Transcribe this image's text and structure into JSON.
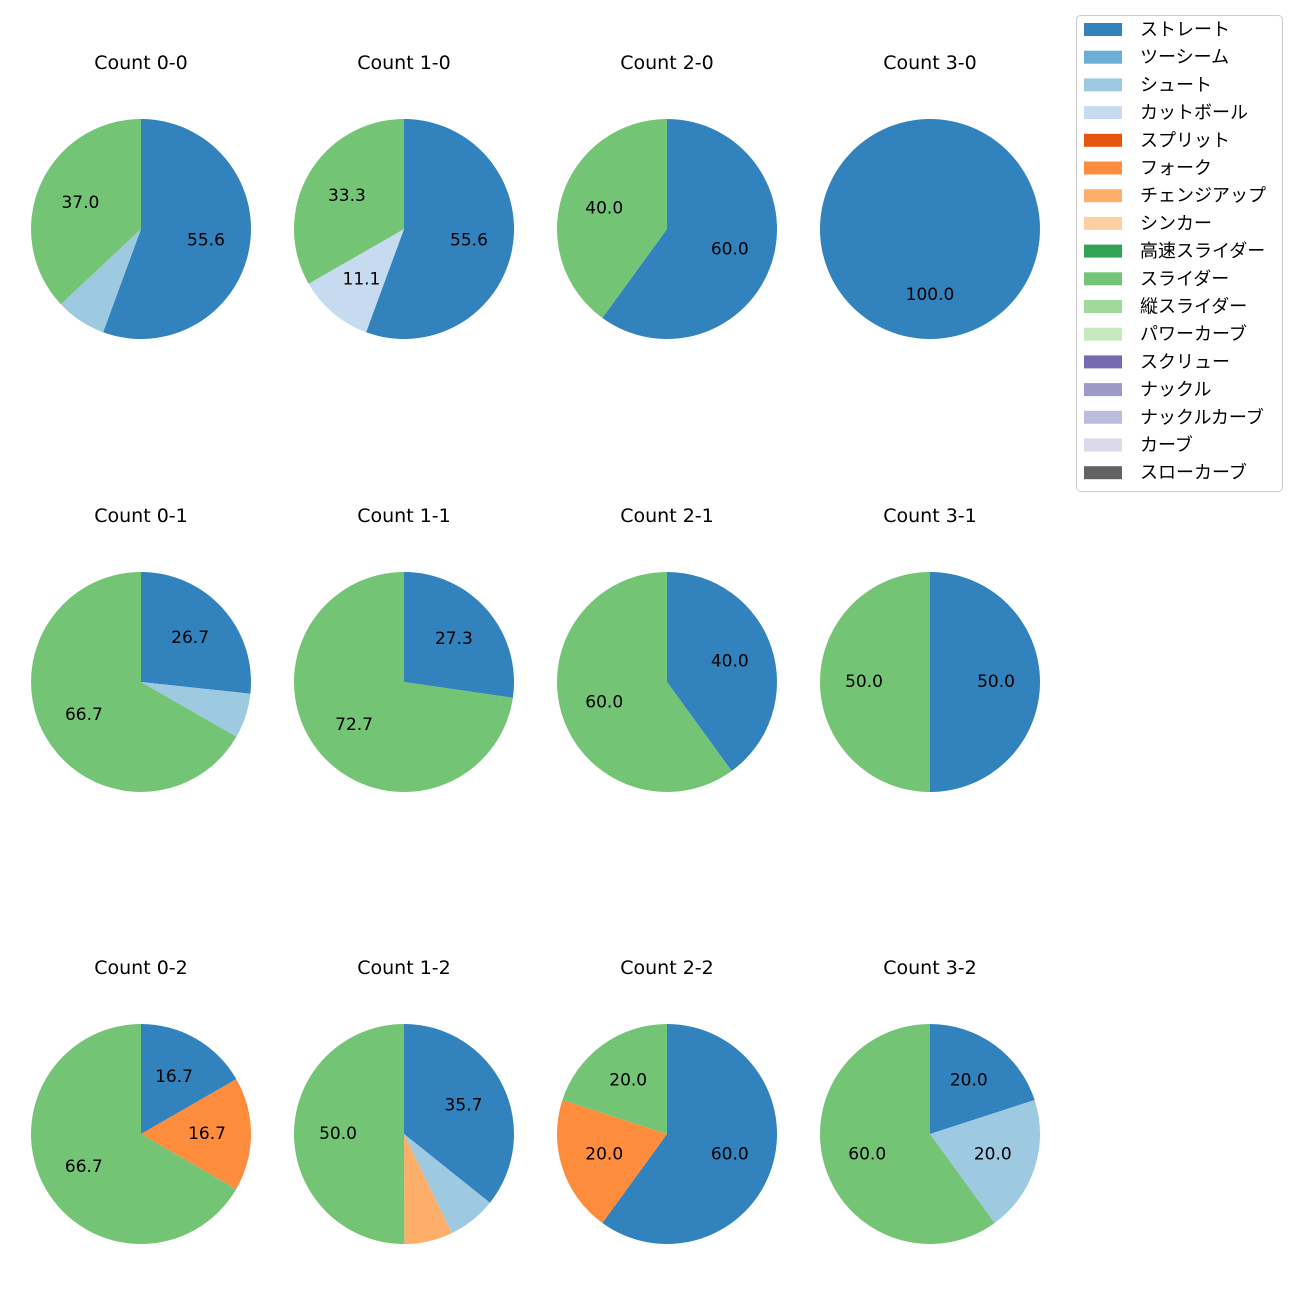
{
  "chart_data": {
    "type": "pie",
    "categories": [
      "ストレート",
      "ツーシーム",
      "シュート",
      "カットボール",
      "スプリット",
      "フォーク",
      "チェンジアップ",
      "シンカー",
      "高速スライダー",
      "スライダー",
      "縦スライダー",
      "パワーカーブ",
      "スクリュー",
      "ナックル",
      "ナックルカーブ",
      "カーブ",
      "スローカーブ"
    ],
    "colors": [
      "#3182bd",
      "#6baed6",
      "#9ecae1",
      "#c6dbef",
      "#e6550d",
      "#fd8d3c",
      "#fdae6b",
      "#fdd0a2",
      "#31a354",
      "#74c476",
      "#a1d99b",
      "#c7e9c0",
      "#756bb1",
      "#9e9ac8",
      "#bcbddc",
      "#dadaeb",
      "#636363"
    ],
    "legend_position": "top-right",
    "start_angle": "90 degrees (top), counter-clockwise order reversed (clockwise)",
    "pies": [
      {
        "title": "Count 0-0",
        "slices": [
          {
            "category": "ストレート",
            "value": 55.6,
            "label": "55.6"
          },
          {
            "category": "シュート",
            "value": 7.4,
            "label": ""
          },
          {
            "category": "スライダー",
            "value": 37.0,
            "label": "37.0"
          }
        ]
      },
      {
        "title": "Count 1-0",
        "slices": [
          {
            "category": "ストレート",
            "value": 55.6,
            "label": "55.6"
          },
          {
            "category": "カットボール",
            "value": 11.1,
            "label": "11.1"
          },
          {
            "category": "スライダー",
            "value": 33.3,
            "label": "33.3"
          }
        ]
      },
      {
        "title": "Count 2-0",
        "slices": [
          {
            "category": "ストレート",
            "value": 60.0,
            "label": "60.0"
          },
          {
            "category": "スライダー",
            "value": 40.0,
            "label": "40.0"
          }
        ]
      },
      {
        "title": "Count 3-0",
        "slices": [
          {
            "category": "ストレート",
            "value": 100.0,
            "label": "100.0"
          }
        ]
      },
      {
        "title": "Count 0-1",
        "slices": [
          {
            "category": "ストレート",
            "value": 26.7,
            "label": "26.7"
          },
          {
            "category": "シュート",
            "value": 6.6,
            "label": ""
          },
          {
            "category": "スライダー",
            "value": 66.7,
            "label": "66.7"
          }
        ]
      },
      {
        "title": "Count 1-1",
        "slices": [
          {
            "category": "ストレート",
            "value": 27.3,
            "label": "27.3"
          },
          {
            "category": "スライダー",
            "value": 72.7,
            "label": "72.7"
          }
        ]
      },
      {
        "title": "Count 2-1",
        "slices": [
          {
            "category": "ストレート",
            "value": 40.0,
            "label": "40.0"
          },
          {
            "category": "スライダー",
            "value": 60.0,
            "label": "60.0"
          }
        ]
      },
      {
        "title": "Count 3-1",
        "slices": [
          {
            "category": "ストレート",
            "value": 50.0,
            "label": "50.0"
          },
          {
            "category": "スライダー",
            "value": 50.0,
            "label": "50.0"
          }
        ]
      },
      {
        "title": "Count 0-2",
        "slices": [
          {
            "category": "ストレート",
            "value": 16.7,
            "label": "16.7"
          },
          {
            "category": "フォーク",
            "value": 16.7,
            "label": "16.7"
          },
          {
            "category": "スライダー",
            "value": 66.7,
            "label": "66.7"
          }
        ]
      },
      {
        "title": "Count 1-2",
        "slices": [
          {
            "category": "ストレート",
            "value": 35.7,
            "label": "35.7"
          },
          {
            "category": "シュート",
            "value": 7.1,
            "label": ""
          },
          {
            "category": "チェンジアップ",
            "value": 7.1,
            "label": ""
          },
          {
            "category": "スライダー",
            "value": 50.0,
            "label": "50.0"
          }
        ]
      },
      {
        "title": "Count 2-2",
        "slices": [
          {
            "category": "ストレート",
            "value": 60.0,
            "label": "60.0"
          },
          {
            "category": "フォーク",
            "value": 20.0,
            "label": "20.0"
          },
          {
            "category": "スライダー",
            "value": 20.0,
            "label": "20.0"
          }
        ]
      },
      {
        "title": "Count 3-2",
        "slices": [
          {
            "category": "ストレート",
            "value": 20.0,
            "label": "20.0"
          },
          {
            "category": "シュート",
            "value": 20.0,
            "label": "20.0"
          },
          {
            "category": "スライダー",
            "value": 60.0,
            "label": "60.0"
          }
        ]
      }
    ]
  }
}
